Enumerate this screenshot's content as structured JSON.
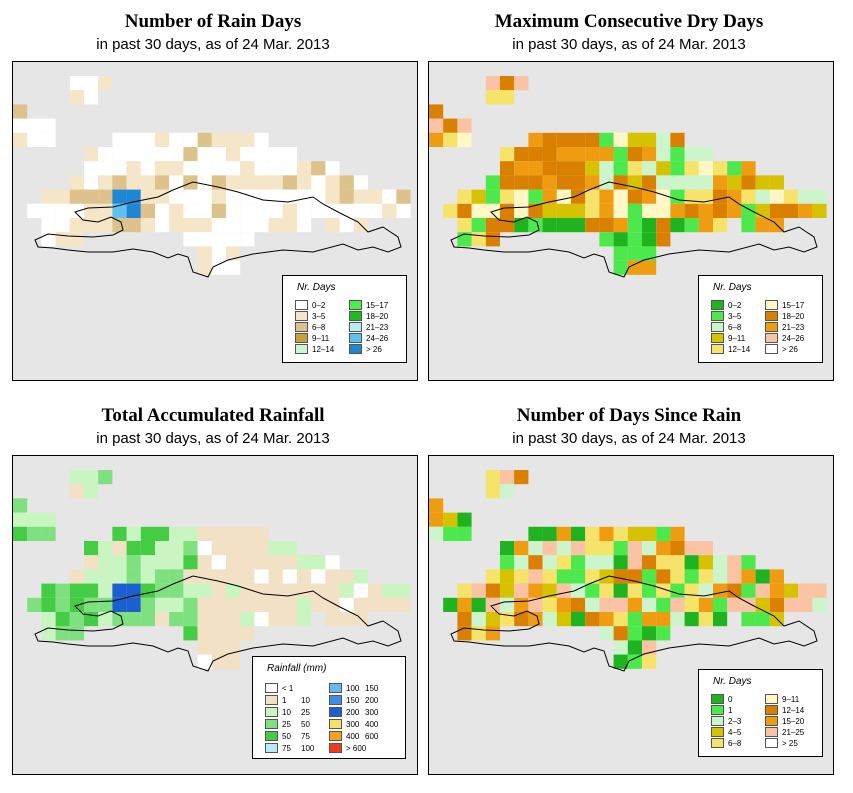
{
  "panels": [
    {
      "title": "Number of Rain Days",
      "subtitle": "in past 30 days, as of  24 Mar. 2013",
      "legend": {
        "title": "Nr. Days",
        "entries": [
          {
            "label": "0–2",
            "color": "#ffffff"
          },
          {
            "label": "3–5",
            "color": "#f5e6c8"
          },
          {
            "label": "6–8",
            "color": "#ddc28c"
          },
          {
            "label": "9–11",
            "color": "#c9a03c"
          },
          {
            "label": "12–14",
            "color": "#ccf7cc"
          },
          {
            "label": "15–17",
            "color": "#4cee4c"
          },
          {
            "label": "18–20",
            "color": "#1fbb1f"
          },
          {
            "label": "21–23",
            "color": "#b8ecf5"
          },
          {
            "label": "24–26",
            "color": "#60c0ef"
          },
          {
            "label": "> 26",
            "color": "#1e86d3"
          }
        ]
      }
    },
    {
      "title": "Maximum Consecutive Dry Days",
      "subtitle": "in past 30 days, as of  24 Mar. 2013",
      "legend": {
        "title": "Nr. Days",
        "entries": [
          {
            "label": "0–2",
            "color": "#1fb31f"
          },
          {
            "label": "3–5",
            "color": "#4ce84c"
          },
          {
            "label": "6–8",
            "color": "#ccf5cc"
          },
          {
            "label": "9–11",
            "color": "#d6c200"
          },
          {
            "label": "12–14",
            "color": "#f5e36a"
          },
          {
            "label": "15–17",
            "color": "#fff7c4"
          },
          {
            "label": "18–20",
            "color": "#d98000"
          },
          {
            "label": "21–23",
            "color": "#f09c10"
          },
          {
            "label": "24–26",
            "color": "#fac3a3"
          },
          {
            "label": "> 26",
            "color": "#ffffff"
          }
        ]
      }
    },
    {
      "title": "Total Accumulated Rainfall",
      "subtitle": "in past 30 days, as of  24 Mar. 2013",
      "legend": {
        "title": "Rainfall (mm)",
        "entries": [
          {
            "lo": "< 1",
            "hi": "",
            "color": "#ffffff"
          },
          {
            "lo": "1",
            "hi": "10",
            "color": "#f2e1c4"
          },
          {
            "lo": "10",
            "hi": "25",
            "color": "#c8f5c0"
          },
          {
            "lo": "25",
            "hi": "50",
            "color": "#7fe07f"
          },
          {
            "lo": "50",
            "hi": "75",
            "color": "#44cc44"
          },
          {
            "lo": "75",
            "hi": "100",
            "color": "#b8ecf7"
          },
          {
            "lo": "100",
            "hi": "150",
            "color": "#66b8f0"
          },
          {
            "lo": "150",
            "hi": "200",
            "color": "#3a8fe8"
          },
          {
            "lo": "200",
            "hi": "300",
            "color": "#1c5fd0"
          },
          {
            "lo": "300",
            "hi": "400",
            "color": "#f7e066"
          },
          {
            "lo": "400",
            "hi": "600",
            "color": "#f5a020"
          },
          {
            "lo": "> 600",
            "hi": "",
            "color": "#f03a1a"
          }
        ]
      }
    },
    {
      "title": "Number of Days Since Rain",
      "subtitle": "in past 30 days, as of  24 Mar. 2013",
      "legend": {
        "title": "Nr. Days",
        "entries": [
          {
            "label": "0",
            "color": "#1fb31f"
          },
          {
            "label": "1",
            "color": "#4ce84c"
          },
          {
            "label": "2–3",
            "color": "#ccf5cc"
          },
          {
            "label": "4–5",
            "color": "#d6c200"
          },
          {
            "label": "6–8",
            "color": "#f5e36a"
          },
          {
            "label": "9–11",
            "color": "#fff7c4"
          },
          {
            "label": "12–14",
            "color": "#d98000"
          },
          {
            "label": "15–20",
            "color": "#f09c10"
          },
          {
            "label": "21–25",
            "color": "#fac3a3"
          },
          {
            "label": "> 25",
            "color": "#ffffff"
          }
        ]
      }
    }
  ]
}
